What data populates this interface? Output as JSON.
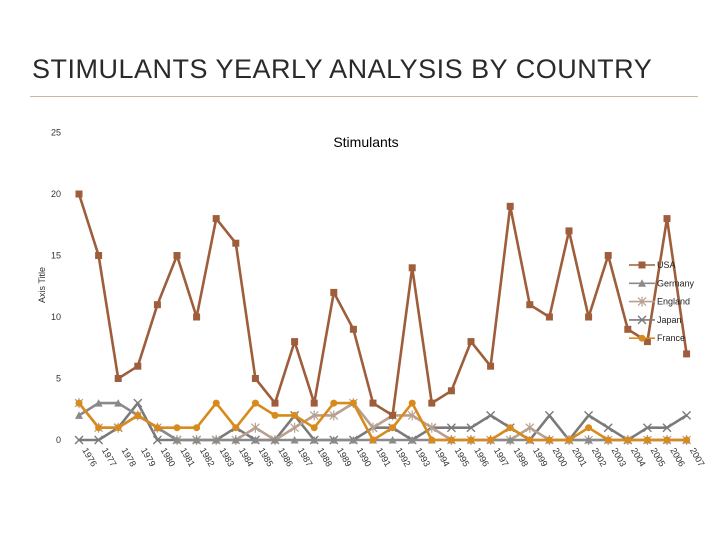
{
  "slide": {
    "title": "STIMULANTS YEARLY ANALYSIS BY COUNTRY"
  },
  "chart_data": {
    "type": "line",
    "title": "Stimulants",
    "xlabel": "",
    "ylabel": "Axis Title",
    "ylim": [
      0,
      25
    ],
    "yticks": [
      0,
      5,
      10,
      15,
      20,
      25
    ],
    "grid": false,
    "legend": "right",
    "categories": [
      "1976",
      "1977",
      "1978",
      "1979",
      "1980",
      "1981",
      "1982",
      "1983",
      "1984",
      "1985",
      "1986",
      "1987",
      "1988",
      "1989",
      "1990",
      "1991",
      "1992",
      "1993",
      "1994",
      "1995",
      "1996",
      "1997",
      "1998",
      "1999",
      "2000",
      "2001",
      "2002",
      "2003",
      "2004",
      "2005",
      "2006",
      "2007"
    ],
    "series": [
      {
        "name": "USA",
        "color": "#9e5d3b",
        "marker": "square",
        "values": [
          20,
          15,
          5,
          6,
          11,
          15,
          10,
          18,
          16,
          5,
          3,
          8,
          3,
          12,
          9,
          3,
          2,
          14,
          3,
          4,
          8,
          6,
          19,
          11,
          10,
          17,
          10,
          15,
          9,
          8,
          18,
          7
        ]
      },
      {
        "name": "Germany",
        "color": "#8a8a8a",
        "marker": "triangle",
        "values": [
          2,
          3,
          3,
          2,
          1,
          0,
          0,
          0,
          0,
          0,
          0,
          0,
          0,
          0,
          0,
          0,
          0,
          0,
          0,
          0,
          0,
          0,
          0,
          0,
          0,
          0,
          0,
          0,
          0,
          0,
          0,
          0
        ]
      },
      {
        "name": "England",
        "color": "#b8a090",
        "marker": "star",
        "values": [
          3,
          1,
          1,
          2,
          1,
          0,
          0,
          0,
          0,
          1,
          0,
          1,
          2,
          2,
          3,
          1,
          2,
          2,
          1,
          0,
          0,
          0,
          0,
          1,
          0,
          0,
          0,
          0,
          0,
          0,
          0,
          0
        ]
      },
      {
        "name": "Japan",
        "color": "#7a7a7a",
        "marker": "x",
        "values": [
          0,
          0,
          1,
          3,
          0,
          0,
          0,
          0,
          1,
          0,
          0,
          2,
          0,
          0,
          0,
          1,
          1,
          0,
          1,
          1,
          1,
          2,
          1,
          0,
          2,
          0,
          2,
          1,
          0,
          1,
          1,
          2
        ]
      },
      {
        "name": "France",
        "color": "#d98a1c",
        "marker": "circle",
        "values": [
          3,
          1,
          1,
          2,
          1,
          1,
          1,
          3,
          1,
          3,
          2,
          2,
          1,
          3,
          3,
          0,
          1,
          3,
          0,
          0,
          0,
          0,
          1,
          0,
          0,
          0,
          1,
          0,
          0,
          0,
          0,
          0
        ]
      }
    ]
  }
}
